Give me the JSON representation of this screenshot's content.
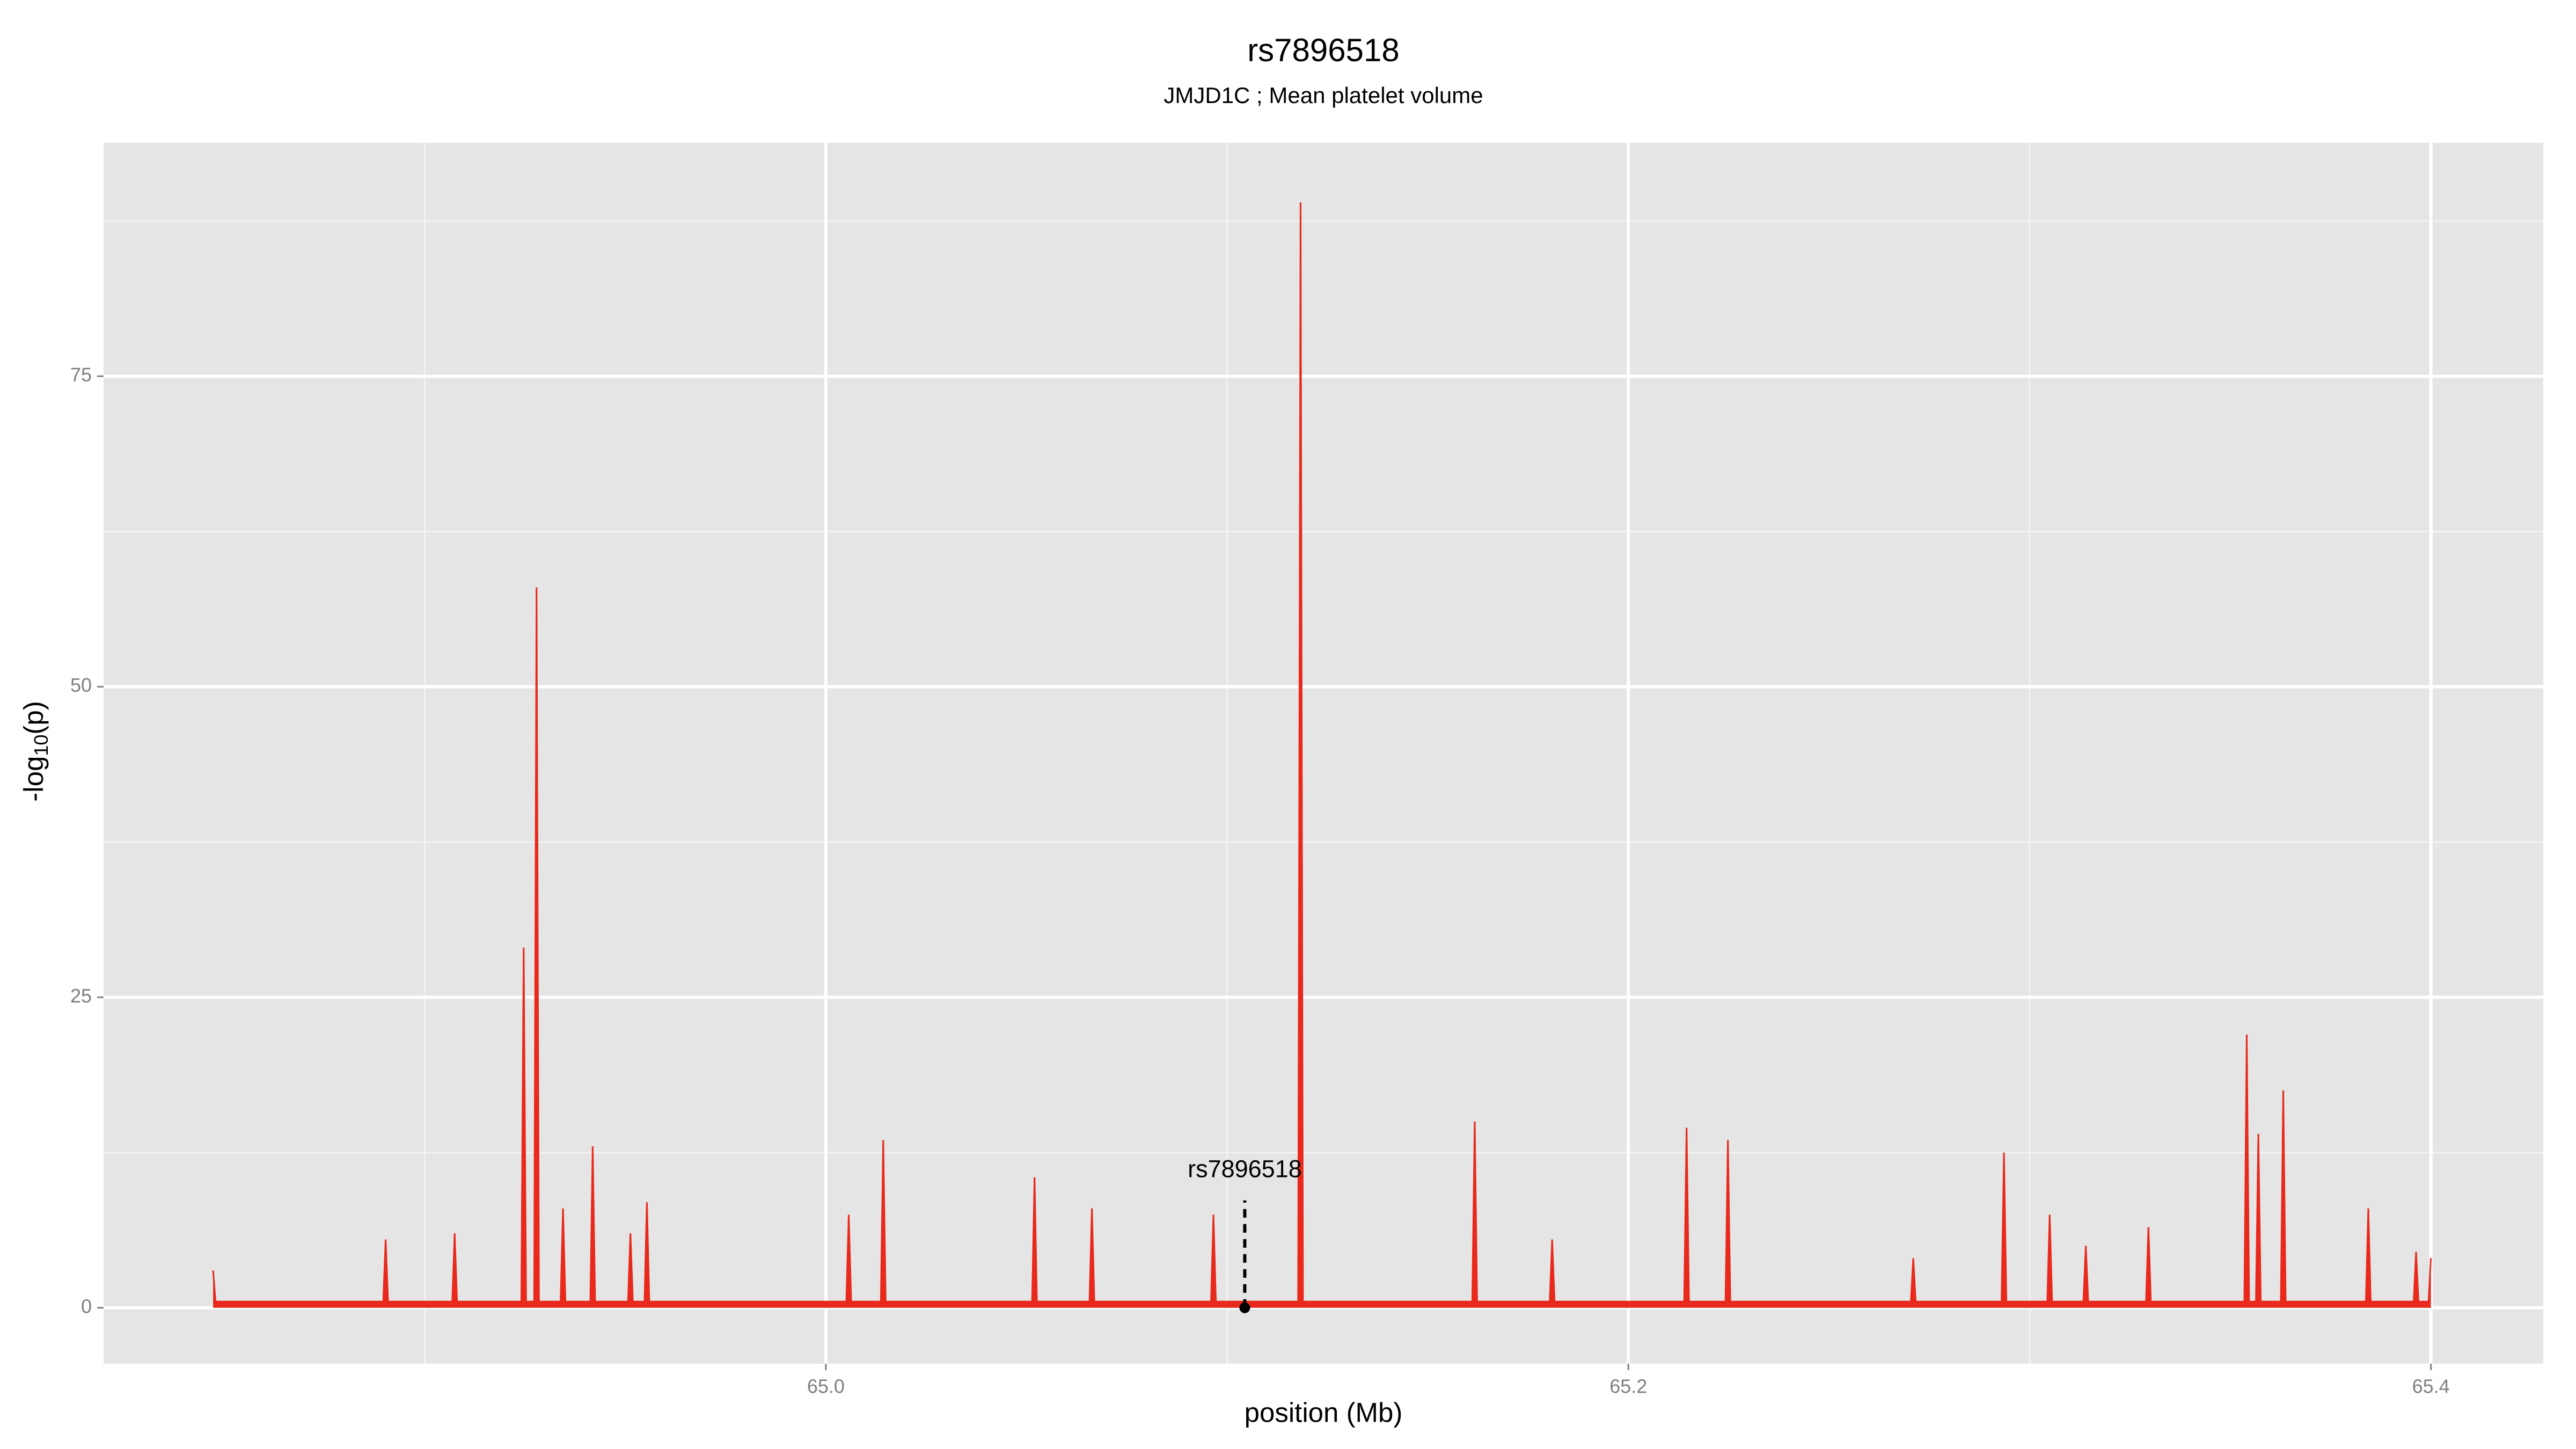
{
  "chart_data": {
    "type": "area",
    "title": "rs7896518",
    "subtitle": "JMJD1C ; Mean platelet volume",
    "xlabel": "position (Mb)",
    "ylabel": {
      "main": "-log",
      "sub": "10",
      "end": "(p)"
    },
    "xlim": [
      64.82,
      65.428
    ],
    "ylim": [
      -4.5,
      93.8
    ],
    "xticks": [
      {
        "value": 65,
        "label": "65.0"
      },
      65.2,
      65.4
    ],
    "yticks": [
      0,
      25,
      50,
      75
    ],
    "x_minor_ticks": [
      64.9,
      65.1,
      65.3
    ],
    "y_minor_ticks": [
      12.5,
      37.5,
      62.5,
      87.5
    ],
    "grid": true,
    "series": [
      {
        "color": "#e8291c",
        "x": [
          64.8473,
          64.8479,
          64.8897,
          64.8903,
          64.8909,
          64.9069,
          64.9075,
          64.9081,
          64.9241,
          64.9247,
          64.9253,
          64.9273,
          64.9279,
          64.9285,
          64.9339,
          64.9345,
          64.9351,
          64.9413,
          64.9419,
          64.9425,
          64.9507,
          64.9513,
          64.9519,
          64.9548,
          64.9554,
          64.956,
          65.0051,
          65.0057,
          65.0063,
          65.0137,
          65.0143,
          65.0149,
          65.0514,
          65.052,
          65.0526,
          65.0657,
          65.0663,
          65.0669,
          65.096,
          65.0966,
          65.0972,
          65.1177,
          65.1183,
          65.1189,
          65.1611,
          65.1617,
          65.1623,
          65.1804,
          65.181,
          65.1816,
          65.2139,
          65.2145,
          65.2151,
          65.2242,
          65.2248,
          65.2254,
          65.2704,
          65.271,
          65.2716,
          65.293,
          65.2936,
          65.2942,
          65.3044,
          65.305,
          65.3056,
          65.3134,
          65.314,
          65.3146,
          65.329,
          65.3296,
          65.3302,
          65.3535,
          65.3541,
          65.3547,
          65.3564,
          65.357,
          65.3576,
          65.3626,
          65.3632,
          65.3638,
          65.3838,
          65.3844,
          65.385,
          65.3957,
          65.3963,
          65.3969,
          65.3994,
          65.4
        ],
        "values": [
          3,
          0.5,
          0.5,
          5.5,
          0.5,
          0.5,
          6,
          0.5,
          0.5,
          29,
          0.5,
          0.5,
          58,
          0.5,
          0.5,
          8,
          0.5,
          0.5,
          13,
          0.5,
          0.5,
          6,
          0.5,
          0.5,
          8.5,
          0.5,
          0.5,
          7.5,
          0.5,
          0.5,
          13.5,
          0.5,
          0.5,
          10.5,
          0.5,
          0.5,
          8,
          0.5,
          0.5,
          7.5,
          0.5,
          0.5,
          89,
          0.5,
          0.5,
          15,
          0.5,
          0.5,
          5.5,
          0.5,
          0.5,
          14.5,
          0.5,
          0.5,
          13.5,
          0.5,
          0.5,
          4,
          0.5,
          0.5,
          12.5,
          0.5,
          0.5,
          7.5,
          0.5,
          0.5,
          5,
          0.5,
          0.5,
          6.5,
          0.5,
          0.5,
          22,
          0.5,
          0.5,
          14,
          0.5,
          0.5,
          17.5,
          0.5,
          0.5,
          8,
          0.5,
          0.5,
          4.5,
          0.5,
          0.5,
          4
        ]
      }
    ],
    "annotation": {
      "text": "rs7896518",
      "x": 65.1044,
      "y": 0
    }
  }
}
